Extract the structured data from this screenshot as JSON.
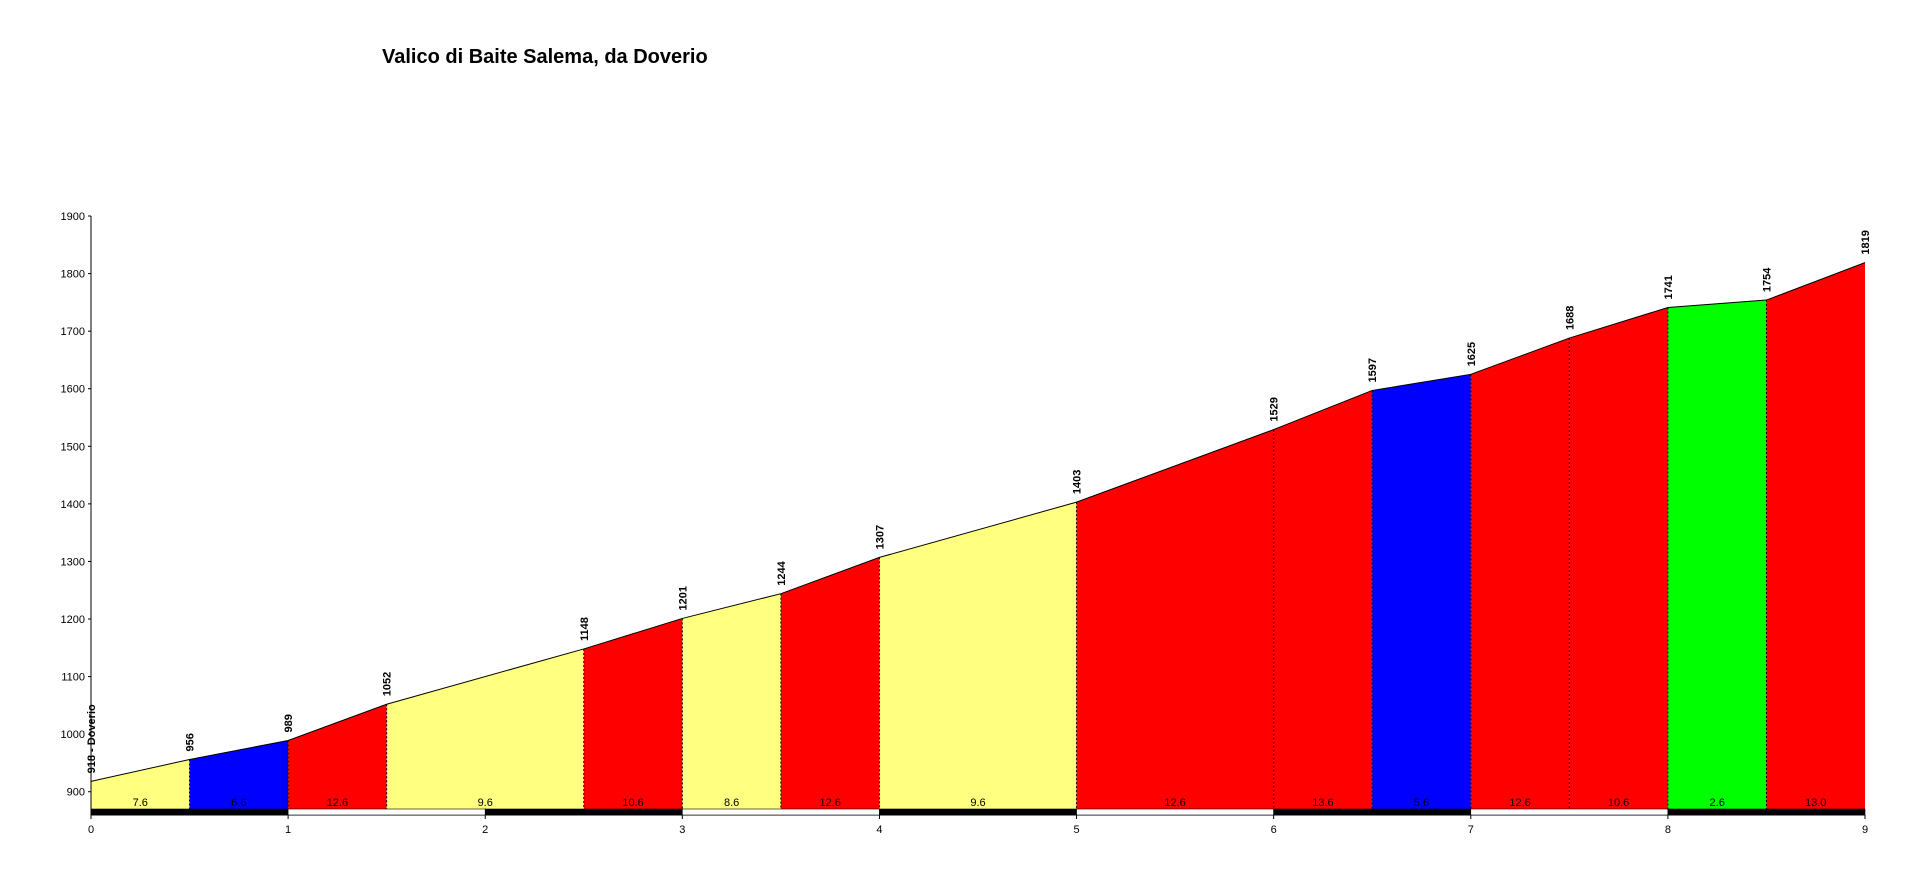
{
  "chart_data": {
    "type": "area",
    "title": "Valico di Baite Salema, da Doverio",
    "xlabel": "",
    "ylabel": "",
    "xlim": [
      0,
      9
    ],
    "ylim": [
      870,
      1900
    ],
    "x_ticks": [
      "0",
      "1",
      "2",
      "3",
      "4",
      "5",
      "6",
      "7",
      "8",
      "9"
    ],
    "y_ticks": [
      "900",
      "1000",
      "1100",
      "1200",
      "1300",
      "1400",
      "1500",
      "1600",
      "1700",
      "1800",
      "1900"
    ],
    "points": [
      {
        "x": 0,
        "y": 918,
        "label": "918 - Doverio"
      },
      {
        "x": 0.5,
        "y": 956,
        "label": "956"
      },
      {
        "x": 1,
        "y": 989,
        "label": "989"
      },
      {
        "x": 1.5,
        "y": 1052,
        "label": "1052"
      },
      {
        "x": 2.5,
        "y": 1148,
        "label": "1148"
      },
      {
        "x": 3,
        "y": 1201,
        "label": "1201"
      },
      {
        "x": 3.5,
        "y": 1244,
        "label": "1244"
      },
      {
        "x": 4,
        "y": 1307,
        "label": "1307"
      },
      {
        "x": 5,
        "y": 1403,
        "label": "1403"
      },
      {
        "x": 6,
        "y": 1529,
        "label": "1529"
      },
      {
        "x": 6.5,
        "y": 1597,
        "label": "1597"
      },
      {
        "x": 7,
        "y": 1625,
        "label": "1625"
      },
      {
        "x": 7.5,
        "y": 1688,
        "label": "1688"
      },
      {
        "x": 8,
        "y": 1741,
        "label": "1741"
      },
      {
        "x": 8.5,
        "y": 1754,
        "label": "1754"
      },
      {
        "x": 9,
        "y": 1819,
        "label": "1819"
      }
    ],
    "segments": [
      {
        "from": 0,
        "to": 0.5,
        "gradient": "7.6",
        "color": "#ffff80"
      },
      {
        "from": 0.5,
        "to": 1,
        "gradient": "6.6",
        "color": "#0000ff"
      },
      {
        "from": 1,
        "to": 1.5,
        "gradient": "12.6",
        "color": "#ff0000"
      },
      {
        "from": 1.5,
        "to": 2.5,
        "gradient": "9.6",
        "color": "#ffff80"
      },
      {
        "from": 2.5,
        "to": 3,
        "gradient": "10.6",
        "color": "#ff0000"
      },
      {
        "from": 3,
        "to": 3.5,
        "gradient": "8.6",
        "color": "#ffff80"
      },
      {
        "from": 3.5,
        "to": 4,
        "gradient": "12.6",
        "color": "#ff0000"
      },
      {
        "from": 4,
        "to": 5,
        "gradient": "9.6",
        "color": "#ffff80"
      },
      {
        "from": 5,
        "to": 6,
        "gradient": "12.6",
        "color": "#ff0000"
      },
      {
        "from": 6,
        "to": 6.5,
        "gradient": "13.6",
        "color": "#ff0000"
      },
      {
        "from": 6.5,
        "to": 7,
        "gradient": "5.6",
        "color": "#0000ff"
      },
      {
        "from": 7,
        "to": 7.5,
        "gradient": "12.6",
        "color": "#ff0000"
      },
      {
        "from": 7.5,
        "to": 8,
        "gradient": "10.6",
        "color": "#ff0000"
      },
      {
        "from": 8,
        "to": 8.5,
        "gradient": "2.6",
        "color": "#00ff00"
      },
      {
        "from": 8.5,
        "to": 9,
        "gradient": "13.0",
        "color": "#ff0000"
      }
    ],
    "km_bar_colors": [
      "#000000",
      "#ffffff"
    ]
  }
}
